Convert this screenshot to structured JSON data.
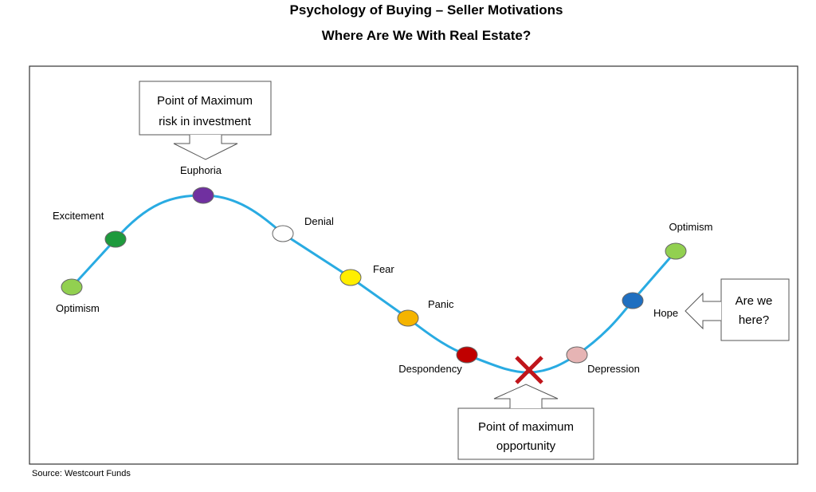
{
  "header": {
    "title": "Psychology of Buying – Seller Motivations",
    "subtitle": "Where Are We With Real Estate?"
  },
  "nodes": [
    {
      "label": "Optimism",
      "color": "#92d050"
    },
    {
      "label": "Excitement",
      "color": "#1e9a3c"
    },
    {
      "label": "Euphoria",
      "color": "#7030a0"
    },
    {
      "label": "Denial",
      "color": "#ffffff"
    },
    {
      "label": "Fear",
      "color": "#ffee00"
    },
    {
      "label": "Panic",
      "color": "#f5b400"
    },
    {
      "label": "Despondency",
      "color": "#c00000"
    },
    {
      "label": "Depression",
      "color": "#e6b4b4"
    },
    {
      "label": "Hope",
      "color": "#1f6fc0"
    },
    {
      "label": "Optimism",
      "color": "#92d050"
    }
  ],
  "callouts": {
    "top": [
      "Point of Maximum",
      "risk in investment"
    ],
    "bottom": [
      "Point of maximum",
      "opportunity"
    ],
    "right": [
      "Are we",
      "here?"
    ]
  },
  "source": "Source: Westcourt Funds"
}
